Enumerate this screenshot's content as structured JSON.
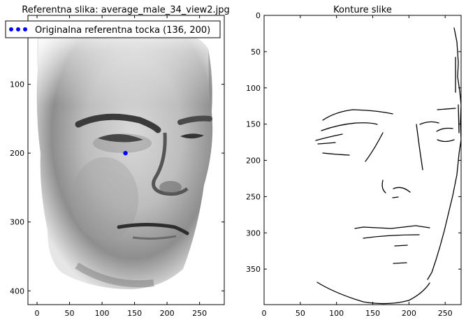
{
  "chart_data": [
    {
      "type": "image",
      "title": "Referentna slika: average_male_34_view2.jpg",
      "xticks": [
        0,
        50,
        100,
        150,
        200,
        250
      ],
      "yticks": [
        100,
        200,
        300,
        400
      ],
      "xlim": [
        -14,
        288
      ],
      "ylim": [
        420,
        0
      ],
      "image_content": "grayscale face photograph",
      "series": [
        {
          "name": "Originalna referentna tocka (136, 200)",
          "type": "scatter",
          "color": "#0000ff",
          "points": [
            [
              136,
              200
            ]
          ]
        }
      ],
      "legend_position": "upper left"
    },
    {
      "type": "image",
      "title": "Konture slike",
      "xticks": [
        0,
        50,
        100,
        150,
        200,
        250
      ],
      "yticks": [
        0,
        50,
        100,
        150,
        200,
        250,
        300,
        350
      ],
      "xlim": [
        0,
        272
      ],
      "ylim": [
        399,
        0
      ],
      "image_content": "edge detection contours of face"
    }
  ],
  "colors": {
    "marker": "#0000ff",
    "axes": "#000000",
    "background": "#ffffff"
  }
}
